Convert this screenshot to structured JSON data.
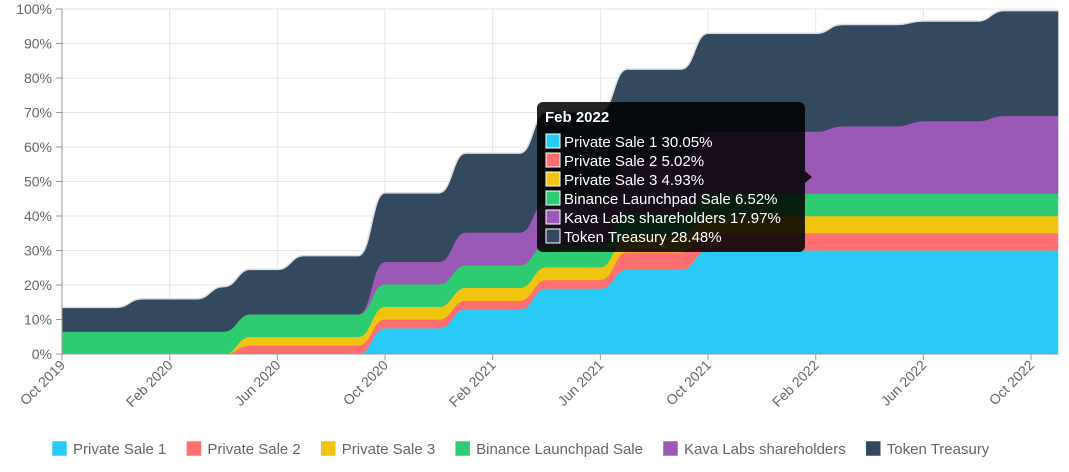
{
  "chart_data": {
    "type": "area",
    "stacked": true,
    "x": [
      "Oct 2019",
      "Nov 2019",
      "Dec 2019",
      "Jan 2020",
      "Feb 2020",
      "Mar 2020",
      "Apr 2020",
      "May 2020",
      "Jun 2020",
      "Jul 2020",
      "Aug 2020",
      "Sep 2020",
      "Oct 2020",
      "Nov 2020",
      "Dec 2020",
      "Jan 2021",
      "Feb 2021",
      "Mar 2021",
      "Apr 2021",
      "May 2021",
      "Jun 2021",
      "Jul 2021",
      "Aug 2021",
      "Sep 2021",
      "Oct 2021",
      "Nov 2021",
      "Dec 2021",
      "Jan 2022",
      "Feb 2022",
      "Mar 2022",
      "Apr 2022",
      "May 2022",
      "Jun 2022",
      "Jul 2022",
      "Aug 2022",
      "Sep 2022",
      "Oct 2022",
      "Nov 2022"
    ],
    "x_tick_labels": [
      "Oct 2019",
      "Feb 2020",
      "Jun 2020",
      "Oct 2020",
      "Feb 2021",
      "Jun 2021",
      "Oct 2021",
      "Feb 2022",
      "Jun 2022",
      "Oct 2022"
    ],
    "y_tick_labels": [
      "0%",
      "10%",
      "20%",
      "30%",
      "40%",
      "50%",
      "60%",
      "70%",
      "80%",
      "90%",
      "100%"
    ],
    "ylim": [
      0,
      100
    ],
    "grid": true,
    "legend_position": "bottom",
    "series": [
      {
        "name": "Private Sale 1",
        "color": "#29cbf6",
        "values": [
          0,
          0,
          0,
          0,
          0,
          0,
          0,
          0,
          0,
          0,
          0,
          0,
          7.5,
          7.5,
          7.5,
          13,
          13,
          13,
          19,
          19,
          19,
          24.5,
          24.5,
          24.5,
          30.05,
          30.05,
          30.05,
          30.05,
          30.05,
          30.05,
          30.05,
          30.05,
          30.05,
          30.05,
          30.05,
          30.05,
          30.05,
          30.05
        ]
      },
      {
        "name": "Private Sale 2",
        "color": "#ff6f6f",
        "values": [
          0,
          0,
          0,
          0,
          0,
          0,
          0,
          2.5,
          2.5,
          2.5,
          2.5,
          2.5,
          2.5,
          2.5,
          2.5,
          2.5,
          2.5,
          2.5,
          2.5,
          2.5,
          2.5,
          5.02,
          5.02,
          5.02,
          5.02,
          5.02,
          5.02,
          5.02,
          5.02,
          5.02,
          5.02,
          5.02,
          5.02,
          5.02,
          5.02,
          5.02,
          5.02,
          5.02
        ]
      },
      {
        "name": "Private Sale 3",
        "color": "#f1c40f",
        "values": [
          0,
          0,
          0,
          0,
          0,
          0,
          0,
          2.5,
          2.5,
          2.5,
          2.5,
          2.5,
          3.7,
          3.7,
          3.7,
          3.7,
          3.7,
          3.7,
          3.7,
          3.7,
          3.7,
          4.93,
          4.93,
          4.93,
          4.93,
          4.93,
          4.93,
          4.93,
          4.93,
          4.93,
          4.93,
          4.93,
          4.93,
          4.93,
          4.93,
          4.93,
          4.93,
          4.93
        ]
      },
      {
        "name": "Binance Launchpad Sale",
        "color": "#2ecc71",
        "values": [
          6.52,
          6.52,
          6.52,
          6.52,
          6.52,
          6.52,
          6.52,
          6.52,
          6.52,
          6.52,
          6.52,
          6.52,
          6.52,
          6.52,
          6.52,
          6.52,
          6.52,
          6.52,
          6.52,
          6.52,
          6.52,
          6.52,
          6.52,
          6.52,
          6.52,
          6.52,
          6.52,
          6.52,
          6.52,
          6.52,
          6.52,
          6.52,
          6.52,
          6.52,
          6.52,
          6.52,
          6.52,
          6.52
        ]
      },
      {
        "name": "Kava Labs shareholders",
        "color": "#9b59b6",
        "values": [
          0,
          0,
          0,
          0,
          0,
          0,
          0,
          0,
          0,
          0,
          0,
          0,
          6.5,
          6.5,
          6.5,
          9.5,
          9.5,
          9.5,
          12.5,
          12.5,
          12.5,
          15.3,
          15.3,
          15.3,
          17.97,
          17.97,
          17.97,
          17.97,
          17.97,
          19.5,
          19.5,
          19.5,
          21,
          21,
          21,
          22.5,
          22.5,
          22.5
        ]
      },
      {
        "name": "Token Treasury",
        "color": "#34495e",
        "values": [
          7,
          7,
          7,
          9.5,
          9.5,
          9.5,
          13,
          13,
          13,
          17,
          17,
          17,
          20,
          20,
          20,
          23,
          23,
          23,
          26,
          26,
          26,
          26.3,
          26.3,
          26.3,
          28.48,
          28.48,
          28.48,
          28.48,
          28.48,
          29.5,
          29.5,
          29.5,
          29,
          29,
          29,
          30.5,
          30.5,
          30.5
        ]
      }
    ],
    "tooltip": {
      "title": "Feb 2022",
      "entries": [
        {
          "name": "Private Sale 1",
          "value": "30.05%"
        },
        {
          "name": "Private Sale 2",
          "value": "5.02%"
        },
        {
          "name": "Private Sale 3",
          "value": "4.93%"
        },
        {
          "name": "Binance Launchpad Sale",
          "value": "6.52%"
        },
        {
          "name": "Kava Labs shareholders",
          "value": "17.97%"
        },
        {
          "name": "Token Treasury",
          "value": "28.48%"
        }
      ]
    }
  }
}
